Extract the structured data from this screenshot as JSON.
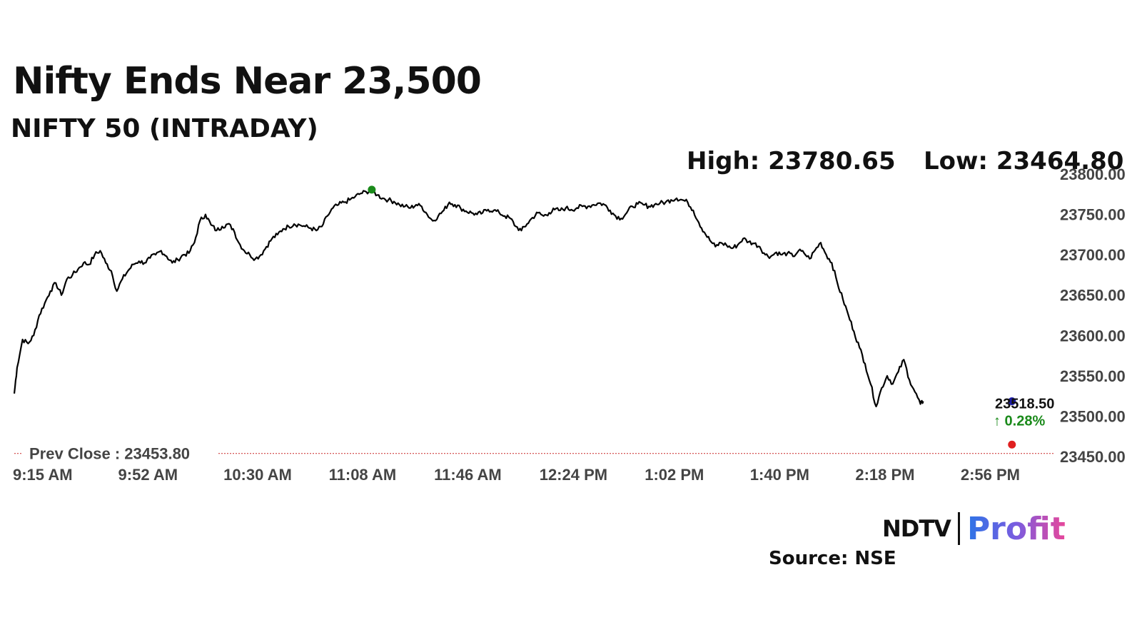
{
  "header": {
    "title": "Nifty Ends Near 23,500",
    "subtitle": "NIFTY 50 (INTRADAY)",
    "high_label": "High: 23780.65",
    "low_label": "Low: 23464.80"
  },
  "chart_data": {
    "type": "line",
    "title": "NIFTY 50 (INTRADAY)",
    "x_tick_labels": [
      "9:15 AM",
      "9:52 AM",
      "10:30 AM",
      "11:08 AM",
      "11:46 AM",
      "12:24 PM",
      "1:02 PM",
      "1:40 PM",
      "2:18 PM",
      "2:56 PM"
    ],
    "y_tick_labels": [
      "23800.00",
      "23750.00",
      "23700.00",
      "23650.00",
      "23600.00",
      "23550.00",
      "23500.00",
      "23450.00"
    ],
    "ylim": [
      23450,
      23800
    ],
    "x_minutes_range": [
      0,
      375
    ],
    "high": 23780.65,
    "low": 23464.8,
    "last_value": 23518.5,
    "last_value_label": "23518.50",
    "change_label": "↑ 0.28%",
    "prev_close": 23453.8,
    "prev_close_label": "Prev Close : 23453.80",
    "series": [
      {
        "line_color": "#000000",
        "points": [
          [
            0,
            23528
          ],
          [
            1,
            23560
          ],
          [
            3,
            23595
          ],
          [
            5,
            23590
          ],
          [
            7,
            23600
          ],
          [
            9,
            23625
          ],
          [
            11,
            23640
          ],
          [
            13,
            23655
          ],
          [
            15,
            23665
          ],
          [
            17,
            23650
          ],
          [
            19,
            23670
          ],
          [
            21,
            23675
          ],
          [
            23,
            23682
          ],
          [
            25,
            23690
          ],
          [
            27,
            23688
          ],
          [
            29,
            23700
          ],
          [
            31,
            23705
          ],
          [
            33,
            23690
          ],
          [
            35,
            23680
          ],
          [
            37,
            23655
          ],
          [
            39,
            23670
          ],
          [
            41,
            23680
          ],
          [
            43,
            23688
          ],
          [
            45,
            23692
          ],
          [
            47,
            23690
          ],
          [
            49,
            23696
          ],
          [
            51,
            23700
          ],
          [
            53,
            23705
          ],
          [
            55,
            23698
          ],
          [
            57,
            23690
          ],
          [
            59,
            23694
          ],
          [
            61,
            23700
          ],
          [
            63,
            23702
          ],
          [
            65,
            23715
          ],
          [
            67,
            23742
          ],
          [
            69,
            23750
          ],
          [
            71,
            23737
          ],
          [
            73,
            23730
          ],
          [
            75,
            23735
          ],
          [
            77,
            23738
          ],
          [
            79,
            23732
          ],
          [
            81,
            23715
          ],
          [
            83,
            23705
          ],
          [
            85,
            23700
          ],
          [
            87,
            23695
          ],
          [
            89,
            23700
          ],
          [
            91,
            23710
          ],
          [
            93,
            23720
          ],
          [
            95,
            23725
          ],
          [
            97,
            23732
          ],
          [
            99,
            23735
          ],
          [
            101,
            23738
          ],
          [
            103,
            23737
          ],
          [
            105,
            23735
          ],
          [
            107,
            23733
          ],
          [
            109,
            23730
          ],
          [
            111,
            23735
          ],
          [
            113,
            23748
          ],
          [
            115,
            23758
          ],
          [
            117,
            23762
          ],
          [
            119,
            23765
          ],
          [
            121,
            23768
          ],
          [
            123,
            23772
          ],
          [
            125,
            23776
          ],
          [
            127,
            23778
          ],
          [
            129,
            23780
          ],
          [
            131,
            23774
          ],
          [
            133,
            23770
          ],
          [
            135,
            23768
          ],
          [
            137,
            23766
          ],
          [
            139,
            23762
          ],
          [
            141,
            23760
          ],
          [
            143,
            23758
          ],
          [
            145,
            23762
          ],
          [
            147,
            23760
          ],
          [
            149,
            23750
          ],
          [
            151,
            23742
          ],
          [
            153,
            23748
          ],
          [
            155,
            23755
          ],
          [
            157,
            23765
          ],
          [
            159,
            23762
          ],
          [
            161,
            23758
          ],
          [
            163,
            23754
          ],
          [
            165,
            23752
          ],
          [
            167,
            23750
          ],
          [
            169,
            23752
          ],
          [
            171,
            23756
          ],
          [
            173,
            23755
          ],
          [
            175,
            23752
          ],
          [
            177,
            23748
          ],
          [
            179,
            23745
          ],
          [
            181,
            23735
          ],
          [
            183,
            23730
          ],
          [
            185,
            23738
          ],
          [
            187,
            23746
          ],
          [
            189,
            23752
          ],
          [
            191,
            23748
          ],
          [
            193,
            23752
          ],
          [
            195,
            23756
          ],
          [
            197,
            23755
          ],
          [
            199,
            23758
          ],
          [
            201,
            23756
          ],
          [
            203,
            23758
          ],
          [
            205,
            23760
          ],
          [
            207,
            23760
          ],
          [
            209,
            23762
          ],
          [
            211,
            23764
          ],
          [
            213,
            23762
          ],
          [
            215,
            23755
          ],
          [
            217,
            23748
          ],
          [
            219,
            23745
          ],
          [
            221,
            23752
          ],
          [
            223,
            23760
          ],
          [
            225,
            23763
          ],
          [
            227,
            23762
          ],
          [
            229,
            23760
          ],
          [
            231,
            23762
          ],
          [
            233,
            23764
          ],
          [
            235,
            23765
          ],
          [
            237,
            23768
          ],
          [
            239,
            23770
          ],
          [
            241,
            23768
          ],
          [
            243,
            23765
          ],
          [
            245,
            23755
          ],
          [
            247,
            23740
          ],
          [
            249,
            23728
          ],
          [
            251,
            23718
          ],
          [
            253,
            23710
          ],
          [
            255,
            23715
          ],
          [
            257,
            23712
          ],
          [
            259,
            23708
          ],
          [
            261,
            23712
          ],
          [
            263,
            23720
          ],
          [
            265,
            23716
          ],
          [
            267,
            23714
          ],
          [
            269,
            23710
          ],
          [
            271,
            23700
          ],
          [
            273,
            23698
          ],
          [
            275,
            23703
          ],
          [
            277,
            23700
          ],
          [
            279,
            23702
          ],
          [
            281,
            23698
          ],
          [
            283,
            23705
          ],
          [
            285,
            23702
          ],
          [
            287,
            23695
          ],
          [
            289,
            23706
          ],
          [
            291,
            23715
          ],
          [
            293,
            23700
          ],
          [
            295,
            23690
          ],
          [
            297,
            23665
          ],
          [
            299,
            23645
          ],
          [
            301,
            23625
          ],
          [
            303,
            23605
          ],
          [
            305,
            23585
          ],
          [
            307,
            23565
          ],
          [
            309,
            23540
          ],
          [
            311,
            23512
          ],
          [
            313,
            23535
          ],
          [
            315,
            23550
          ],
          [
            317,
            23540
          ],
          [
            319,
            23555
          ],
          [
            321,
            23570
          ],
          [
            323,
            23545
          ],
          [
            325,
            23530
          ],
          [
            327,
            23515
          ],
          [
            328,
            23518.5
          ]
        ]
      }
    ],
    "markers": [
      {
        "name": "high-marker",
        "x": 129,
        "y": 23780.65,
        "color": "#1a8a1a"
      },
      {
        "name": "last-marker",
        "x": 360,
        "y": 23518.5,
        "color": "#1a1aa8"
      },
      {
        "name": "low-marker",
        "x": 360,
        "y": 23464.8,
        "color": "#e02020"
      }
    ],
    "grid": false,
    "prev_close_line_color": "#d04040"
  },
  "footer": {
    "logo_left": "NDTV",
    "logo_right": "Profit",
    "source": "Source: NSE"
  }
}
